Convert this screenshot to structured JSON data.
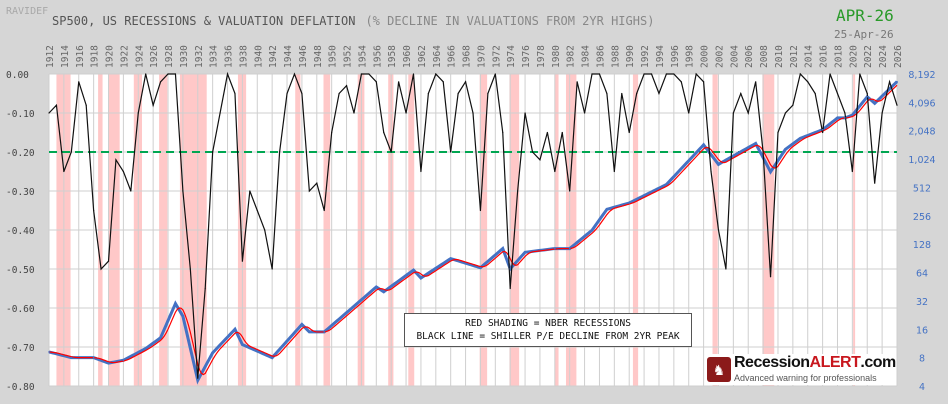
{
  "header": {
    "source": "RAVIDEF",
    "title": "SP500, US RECESSIONS & VALUATION DEFLATION",
    "subtitle": "(% DECLINE IN VALUATIONS FROM 2YR HIGHS)",
    "month": "APR-26",
    "date": "25-Apr-26"
  },
  "legend": {
    "line1": "RED SHADING = NBER RECESSIONS",
    "line2": "BLACK LINE = SHILLER P/E DECLINE FROM 2YR PEAK"
  },
  "logo": {
    "brand_a": "Recession",
    "brand_b": "ALERT",
    "brand_c": ".com",
    "tagline": "Advanced warning for professionals"
  },
  "colors": {
    "recession": "#ffc8c8",
    "drawdown": "#111111",
    "sp500": "#4472c4",
    "sp500_smooth": "#ff0000",
    "threshold": "#00a651",
    "left_ticks": "#444444",
    "right_ticks": "#4472c4"
  },
  "chart_data": {
    "type": "line",
    "xlim": [
      1912,
      2026
    ],
    "x_ticks": [
      "1912",
      "1914",
      "1916",
      "1918",
      "1920",
      "1922",
      "1924",
      "1926",
      "1928",
      "1930",
      "1932",
      "1934",
      "1936",
      "1938",
      "1940",
      "1942",
      "1944",
      "1946",
      "1948",
      "1950",
      "1952",
      "1954",
      "1956",
      "1958",
      "1960",
      "1962",
      "1964",
      "1966",
      "1968",
      "1970",
      "1972",
      "1974",
      "1976",
      "1978",
      "1980",
      "1982",
      "1984",
      "1986",
      "1988",
      "1990",
      "1992",
      "1994",
      "1996",
      "1998",
      "2000",
      "2002",
      "2004",
      "2006",
      "2008",
      "2010",
      "2012",
      "2014",
      "2016",
      "2018",
      "2020",
      "2022",
      "2024",
      "2026"
    ],
    "ylim_left": [
      -0.8,
      0
    ],
    "left_ticks": [
      "0.00",
      "-0.10",
      "-0.20",
      "-0.30",
      "-0.40",
      "-0.50",
      "-0.60",
      "-0.70",
      "-0.80"
    ],
    "right_scale": "log2",
    "ylim_right": [
      4,
      8192
    ],
    "right_ticks": [
      "8,192",
      "4,096",
      "2,048",
      "1,024",
      "512",
      "256",
      "128",
      "64",
      "32",
      "16",
      "8",
      "4"
    ],
    "threshold": -0.2,
    "grid": true,
    "recessions": [
      [
        1913.0,
        1914.9
      ],
      [
        1918.6,
        1919.2
      ],
      [
        1920.0,
        1921.5
      ],
      [
        1923.4,
        1924.5
      ],
      [
        1926.8,
        1927.9
      ],
      [
        1929.6,
        1933.2
      ],
      [
        1937.4,
        1938.5
      ],
      [
        1945.1,
        1945.8
      ],
      [
        1948.9,
        1949.8
      ],
      [
        1953.5,
        1954.4
      ],
      [
        1957.6,
        1958.3
      ],
      [
        1960.3,
        1961.1
      ],
      [
        1969.9,
        1970.9
      ],
      [
        1973.9,
        1975.2
      ],
      [
        1980.0,
        1980.5
      ],
      [
        1981.5,
        1982.9
      ],
      [
        1990.5,
        1991.2
      ],
      [
        2001.2,
        2001.9
      ],
      [
        2007.9,
        2009.5
      ],
      [
        2020.1,
        2020.3
      ]
    ],
    "series": [
      {
        "name": "SHILLER P/E DECLINE FROM 2YR PEAK",
        "axis": "left",
        "x": [
          1912,
          1913,
          1914,
          1915,
          1916,
          1917,
          1918,
          1919,
          1920,
          1921,
          1922,
          1923,
          1924,
          1925,
          1926,
          1927,
          1928,
          1929,
          1930,
          1931,
          1932,
          1933,
          1934,
          1935,
          1936,
          1937,
          1938,
          1939,
          1940,
          1941,
          1942,
          1943,
          1944,
          1945,
          1946,
          1947,
          1948,
          1949,
          1950,
          1951,
          1952,
          1953,
          1954,
          1955,
          1956,
          1957,
          1958,
          1959,
          1960,
          1961,
          1962,
          1963,
          1964,
          1965,
          1966,
          1967,
          1968,
          1969,
          1970,
          1971,
          1972,
          1973,
          1974,
          1975,
          1976,
          1977,
          1978,
          1979,
          1980,
          1981,
          1982,
          1983,
          1984,
          1985,
          1986,
          1987,
          1988,
          1989,
          1990,
          1991,
          1992,
          1993,
          1994,
          1995,
          1996,
          1997,
          1998,
          1999,
          2000,
          2001,
          2002,
          2003,
          2004,
          2005,
          2006,
          2007,
          2008,
          2009,
          2010,
          2011,
          2012,
          2013,
          2014,
          2015,
          2016,
          2017,
          2018,
          2019,
          2020,
          2021,
          2022,
          2023,
          2024,
          2025,
          2026
        ],
        "values": [
          -0.1,
          -0.08,
          -0.25,
          -0.2,
          -0.02,
          -0.08,
          -0.35,
          -0.5,
          -0.48,
          -0.22,
          -0.25,
          -0.3,
          -0.1,
          0,
          -0.08,
          -0.02,
          0,
          0,
          -0.3,
          -0.5,
          -0.78,
          -0.55,
          -0.2,
          -0.1,
          0,
          -0.05,
          -0.48,
          -0.3,
          -0.35,
          -0.4,
          -0.5,
          -0.2,
          -0.05,
          0,
          -0.05,
          -0.3,
          -0.28,
          -0.35,
          -0.15,
          -0.05,
          -0.03,
          -0.1,
          0,
          0,
          -0.02,
          -0.15,
          -0.2,
          -0.02,
          -0.1,
          0,
          -0.25,
          -0.05,
          0,
          -0.02,
          -0.2,
          -0.05,
          -0.02,
          -0.1,
          -0.35,
          -0.05,
          0,
          -0.15,
          -0.55,
          -0.3,
          -0.1,
          -0.2,
          -0.22,
          -0.15,
          -0.25,
          -0.15,
          -0.3,
          -0.02,
          -0.1,
          0,
          0,
          -0.05,
          -0.25,
          -0.05,
          -0.15,
          -0.05,
          0,
          0,
          -0.05,
          0,
          0,
          -0.02,
          -0.1,
          0,
          -0.02,
          -0.25,
          -0.4,
          -0.5,
          -0.1,
          -0.05,
          -0.1,
          -0.02,
          -0.2,
          -0.52,
          -0.15,
          -0.1,
          -0.08,
          0,
          -0.02,
          -0.05,
          -0.15,
          0,
          -0.05,
          -0.1,
          -0.25,
          0,
          -0.05,
          -0.28,
          -0.1,
          -0.02,
          -0.08
        ]
      },
      {
        "name": "SP500",
        "axis": "right",
        "x": [
          1912,
          1915,
          1918,
          1920,
          1922,
          1925,
          1927,
          1929,
          1930,
          1932,
          1934,
          1937,
          1938,
          1942,
          1946,
          1947,
          1949,
          1952,
          1956,
          1957,
          1961,
          1962,
          1966,
          1970,
          1973,
          1974,
          1976,
          1980,
          1982,
          1985,
          1987,
          1990,
          1995,
          2000,
          2002,
          2003,
          2007,
          2009,
          2011,
          2013,
          2016,
          2018,
          2019,
          2020,
          2022,
          2023,
          2026
        ],
        "values": [
          9.2,
          8,
          8,
          7,
          7.5,
          10,
          13,
          30,
          22,
          4.6,
          9,
          16,
          11,
          8,
          18,
          15,
          15,
          24,
          45,
          40,
          68,
          56,
          90,
          72,
          115,
          70,
          105,
          115,
          115,
          180,
          300,
          350,
          550,
          1450,
          900,
          1000,
          1500,
          750,
          1300,
          1700,
          2100,
          2800,
          2800,
          3000,
          4700,
          4000,
          6800
        ]
      }
    ]
  }
}
